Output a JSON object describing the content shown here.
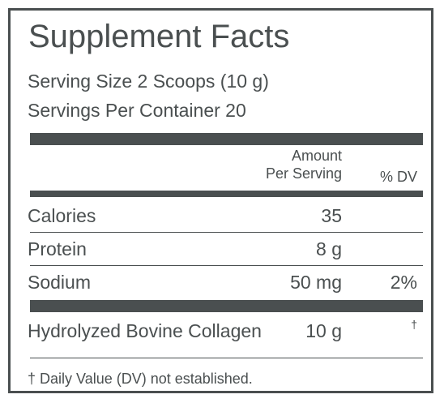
{
  "label": {
    "title": "Supplement Facts",
    "serving_size": "Serving Size 2 Scoops (10 g)",
    "servings_per_container": "Servings Per Container 20"
  },
  "columns": {
    "amount_line1": "Amount",
    "amount_line2": "Per Serving",
    "dv": "% DV"
  },
  "rows": [
    {
      "name": "Calories",
      "amount": "35",
      "dv": ""
    },
    {
      "name": "Protein",
      "amount": "8 g",
      "dv": ""
    },
    {
      "name": "Sodium",
      "amount": "50 mg",
      "dv": "2%"
    }
  ],
  "ingredient": {
    "name": "Hydrolyzed Bovine Collagen",
    "amount": "10 g",
    "dv": "†"
  },
  "footnote": "† Daily Value (DV) not established.",
  "colors": {
    "ink": "#4a4f50",
    "background": "#ffffff"
  }
}
